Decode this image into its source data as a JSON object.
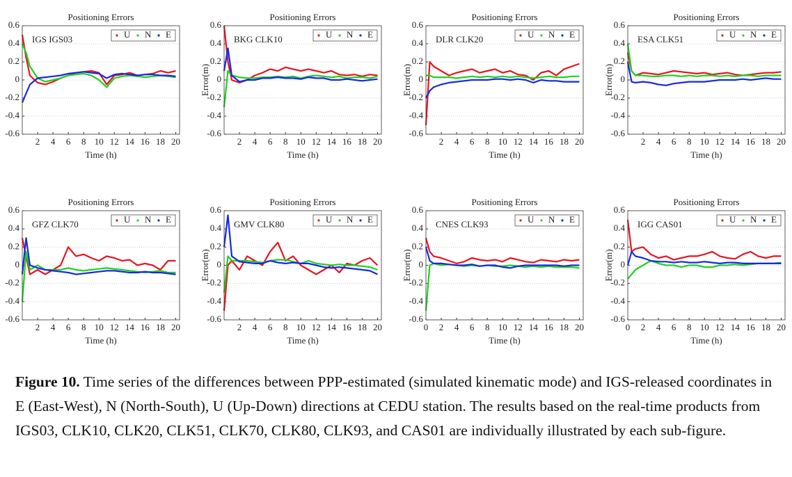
{
  "chart_data": [
    {
      "type": "line",
      "title": "Positioning Errors",
      "annotation": "IGS IGS03",
      "xlabel": "Time (h)",
      "x": [
        0,
        0.5,
        1,
        2,
        3,
        4,
        5,
        6,
        7,
        8,
        9,
        10,
        11,
        12,
        13,
        14,
        15,
        16,
        17,
        18,
        19,
        20
      ],
      "series": [
        {
          "name": "U",
          "color": "#e8141e",
          "values": [
            0.5,
            0.25,
            0.05,
            -0.03,
            -0.05,
            -0.02,
            0.02,
            0.05,
            0.08,
            0.09,
            0.1,
            0.08,
            -0.05,
            0.05,
            0.06,
            0.08,
            0.05,
            0.06,
            0.07,
            0.1,
            0.08,
            0.1
          ]
        },
        {
          "name": "N",
          "color": "#1ed21e",
          "values": [
            0.4,
            0.3,
            0.15,
            0.02,
            -0.02,
            0.0,
            0.02,
            0.05,
            0.06,
            0.07,
            0.05,
            0.0,
            -0.08,
            0.02,
            0.04,
            0.05,
            0.04,
            0.03,
            0.04,
            0.05,
            0.04,
            0.03
          ]
        },
        {
          "name": "E",
          "color": "#1428e6",
          "values": [
            -0.25,
            -0.15,
            -0.05,
            0.02,
            0.03,
            0.04,
            0.05,
            0.07,
            0.08,
            0.09,
            0.08,
            0.07,
            0.02,
            0.06,
            0.07,
            0.06,
            0.05,
            0.06,
            0.06,
            0.05,
            0.05,
            0.04
          ]
        }
      ],
      "xlim": [
        0,
        20.5
      ],
      "ylim": [
        -0.6,
        0.6
      ],
      "xticks": [
        2,
        4,
        6,
        8,
        10,
        12,
        14,
        16,
        18,
        20
      ],
      "yticks": [
        -0.6,
        -0.4,
        -0.2,
        0,
        0.2,
        0.4,
        0.6
      ],
      "grid": true,
      "legend": "top-right"
    },
    {
      "type": "line",
      "title": "Positioning Errors",
      "annotation": "BKG CLK10",
      "xlabel": "Time (h)",
      "ylabel": "Error(m)",
      "x": [
        0,
        0.5,
        1,
        2,
        3,
        4,
        5,
        6,
        7,
        8,
        9,
        10,
        11,
        12,
        13,
        14,
        15,
        16,
        17,
        18,
        19,
        20
      ],
      "series": [
        {
          "name": "U",
          "color": "#e8141e",
          "values": [
            0.6,
            0.2,
            0.0,
            -0.03,
            0.0,
            0.05,
            0.08,
            0.12,
            0.1,
            0.14,
            0.12,
            0.1,
            0.12,
            0.1,
            0.08,
            0.1,
            0.06,
            0.05,
            0.06,
            0.04,
            0.06,
            0.05
          ]
        },
        {
          "name": "N",
          "color": "#1ed21e",
          "values": [
            -0.3,
            0.1,
            0.05,
            0.03,
            0.02,
            0.02,
            0.03,
            0.03,
            0.04,
            0.03,
            0.04,
            0.02,
            0.04,
            0.05,
            0.04,
            0.03,
            0.04,
            0.02,
            0.03,
            0.03,
            0.02,
            0.04
          ]
        },
        {
          "name": "E",
          "color": "#1428e6",
          "values": [
            0.1,
            0.35,
            0.05,
            -0.02,
            0.0,
            0.0,
            0.02,
            0.02,
            0.03,
            0.02,
            0.02,
            0.01,
            0.03,
            0.02,
            0.02,
            0.0,
            0.0,
            0.01,
            0.0,
            -0.01,
            0.0,
            0.01
          ]
        }
      ],
      "xlim": [
        0,
        20.5
      ],
      "ylim": [
        -0.6,
        0.6
      ],
      "xticks": [
        2,
        4,
        6,
        8,
        10,
        12,
        14,
        16,
        18,
        20
      ],
      "yticks": [
        -0.6,
        -0.4,
        -0.2,
        0,
        0.2,
        0.4,
        0.6
      ],
      "grid": true,
      "legend": "top-right"
    },
    {
      "type": "line",
      "title": "Positioning Errors",
      "annotation": "DLR CLK20",
      "xlabel": "Time (h)",
      "ylabel": "Error(m)",
      "x": [
        0,
        0.5,
        1,
        2,
        3,
        4,
        5,
        6,
        7,
        8,
        9,
        10,
        11,
        12,
        13,
        14,
        15,
        16,
        17,
        18,
        19,
        20
      ],
      "series": [
        {
          "name": "U",
          "color": "#e8141e",
          "values": [
            -0.5,
            0.2,
            0.15,
            0.1,
            0.05,
            0.08,
            0.1,
            0.12,
            0.08,
            0.1,
            0.12,
            0.08,
            0.1,
            0.06,
            0.05,
            0.0,
            0.08,
            0.1,
            0.05,
            0.12,
            0.15,
            0.18
          ]
        },
        {
          "name": "N",
          "color": "#1ed21e",
          "values": [
            0.05,
            0.05,
            0.03,
            0.03,
            0.03,
            0.02,
            0.03,
            0.04,
            0.03,
            0.04,
            0.03,
            0.04,
            0.03,
            0.04,
            0.03,
            0.02,
            0.03,
            0.04,
            0.03,
            0.03,
            0.04,
            0.04
          ]
        },
        {
          "name": "E",
          "color": "#1428e6",
          "values": [
            -0.2,
            -0.12,
            -0.08,
            -0.05,
            -0.03,
            -0.02,
            -0.01,
            0.0,
            0.0,
            0.0,
            0.01,
            0.01,
            0.0,
            0.01,
            0.0,
            -0.03,
            0.0,
            -0.01,
            -0.01,
            -0.02,
            -0.02,
            -0.02
          ]
        }
      ],
      "xlim": [
        0,
        20.5
      ],
      "ylim": [
        -0.6,
        0.6
      ],
      "xticks": [
        2,
        4,
        6,
        8,
        10,
        12,
        14,
        16,
        18,
        20
      ],
      "yticks": [
        -0.6,
        -0.4,
        -0.2,
        0,
        0.2,
        0.4,
        0.6
      ],
      "grid": true,
      "legend": "top-right"
    },
    {
      "type": "line",
      "title": "Positioning Errors",
      "annotation": "ESA CLK51",
      "xlabel": "Time (h)",
      "ylabel": "Error(m)",
      "x": [
        0,
        0.5,
        1,
        2,
        3,
        4,
        5,
        6,
        7,
        8,
        9,
        10,
        11,
        12,
        13,
        14,
        15,
        16,
        17,
        18,
        19,
        20
      ],
      "series": [
        {
          "name": "U",
          "color": "#e8141e",
          "values": [
            0.3,
            0.1,
            0.05,
            0.08,
            0.07,
            0.06,
            0.08,
            0.1,
            0.09,
            0.08,
            0.07,
            0.08,
            0.06,
            0.07,
            0.08,
            0.06,
            0.05,
            0.06,
            0.07,
            0.08,
            0.08,
            0.09
          ]
        },
        {
          "name": "N",
          "color": "#1ed21e",
          "values": [
            0.4,
            0.1,
            0.05,
            0.05,
            0.04,
            0.04,
            0.05,
            0.05,
            0.04,
            0.05,
            0.04,
            0.05,
            0.05,
            0.04,
            0.05,
            0.04,
            0.05,
            0.05,
            0.04,
            0.05,
            0.05,
            0.05
          ]
        },
        {
          "name": "E",
          "color": "#1428e6",
          "values": [
            0.2,
            -0.02,
            -0.03,
            -0.02,
            -0.03,
            -0.05,
            -0.06,
            -0.04,
            -0.03,
            -0.02,
            -0.02,
            -0.02,
            -0.01,
            0.0,
            0.0,
            0.0,
            0.01,
            0.0,
            0.01,
            0.02,
            0.01,
            0.01
          ]
        }
      ],
      "xlim": [
        0,
        20.5
      ],
      "ylim": [
        -0.6,
        0.6
      ],
      "xticks": [
        2,
        4,
        6,
        8,
        10,
        12,
        14,
        16,
        18,
        20
      ],
      "yticks": [
        -0.6,
        -0.4,
        -0.2,
        0,
        0.2,
        0.4,
        0.6
      ],
      "grid": true,
      "legend": "top-right"
    },
    {
      "type": "line",
      "title": "Positioning Errors",
      "annotation": "GFZ CLK70",
      "xlabel": "Time (h)",
      "x": [
        0,
        0.5,
        1,
        2,
        3,
        4,
        5,
        6,
        7,
        8,
        9,
        10,
        11,
        12,
        13,
        14,
        15,
        16,
        17,
        18,
        19,
        20
      ],
      "series": [
        {
          "name": "U",
          "color": "#e8141e",
          "values": [
            0.3,
            0.1,
            -0.1,
            -0.05,
            -0.1,
            -0.05,
            0.0,
            0.2,
            0.1,
            0.12,
            0.08,
            0.05,
            0.1,
            0.08,
            0.05,
            0.06,
            0.0,
            0.02,
            0.0,
            -0.05,
            0.05,
            0.05
          ]
        },
        {
          "name": "N",
          "color": "#1ed21e",
          "values": [
            -0.4,
            0.15,
            -0.05,
            0.0,
            -0.05,
            -0.05,
            -0.05,
            -0.03,
            -0.05,
            -0.06,
            -0.05,
            -0.04,
            -0.03,
            -0.04,
            -0.05,
            -0.06,
            -0.07,
            -0.08,
            -0.07,
            -0.06,
            -0.08,
            -0.08
          ]
        },
        {
          "name": "E",
          "color": "#1428e6",
          "values": [
            -0.1,
            0.3,
            0.0,
            -0.03,
            -0.05,
            -0.06,
            -0.07,
            -0.08,
            -0.1,
            -0.09,
            -0.08,
            -0.07,
            -0.06,
            -0.06,
            -0.07,
            -0.08,
            -0.08,
            -0.07,
            -0.08,
            -0.08,
            -0.09,
            -0.1
          ]
        }
      ],
      "xlim": [
        0,
        20.5
      ],
      "ylim": [
        -0.6,
        0.6
      ],
      "xticks": [
        2,
        4,
        6,
        8,
        10,
        12,
        14,
        16,
        18,
        20
      ],
      "yticks": [
        -0.6,
        -0.4,
        -0.2,
        0,
        0.2,
        0.4,
        0.6
      ],
      "grid": true,
      "legend": "top-right"
    },
    {
      "type": "line",
      "title": "Positioning Errors",
      "annotation": "GMV CLK80",
      "xlabel": "Time (h)",
      "ylabel": "Error(m)",
      "x": [
        0,
        0.5,
        1,
        2,
        3,
        4,
        5,
        6,
        7,
        8,
        9,
        10,
        11,
        12,
        13,
        14,
        15,
        16,
        17,
        18,
        19,
        20
      ],
      "series": [
        {
          "name": "U",
          "color": "#e8141e",
          "values": [
            -0.5,
            0.0,
            0.05,
            -0.05,
            0.1,
            0.05,
            0.0,
            0.15,
            0.25,
            0.05,
            0.1,
            0.0,
            -0.05,
            -0.1,
            -0.05,
            0.0,
            -0.08,
            0.02,
            0.0,
            0.05,
            0.08,
            0.0
          ]
        },
        {
          "name": "N",
          "color": "#1ed21e",
          "values": [
            -0.3,
            0.1,
            0.05,
            0.05,
            0.05,
            0.04,
            0.03,
            0.05,
            0.06,
            0.06,
            0.04,
            0.02,
            0.05,
            0.02,
            0.01,
            0.0,
            0.01,
            0.0,
            0.0,
            -0.01,
            -0.02,
            -0.05
          ]
        },
        {
          "name": "E",
          "color": "#1428e6",
          "values": [
            0.2,
            0.55,
            0.1,
            0.04,
            0.03,
            0.02,
            0.02,
            0.05,
            0.03,
            0.02,
            0.03,
            0.02,
            0.02,
            0.0,
            -0.02,
            -0.03,
            -0.02,
            -0.03,
            -0.04,
            -0.05,
            -0.06,
            -0.1
          ]
        }
      ],
      "xlim": [
        0,
        20.5
      ],
      "ylim": [
        -0.6,
        0.6
      ],
      "xticks": [
        2,
        4,
        6,
        8,
        10,
        12,
        14,
        16,
        18,
        20
      ],
      "yticks": [
        -0.6,
        -0.4,
        -0.2,
        0,
        0.2,
        0.4,
        0.6
      ],
      "grid": true,
      "legend": "top-right"
    },
    {
      "type": "line",
      "title": "Positioning Errors",
      "annotation": "CNES CLK93",
      "xlabel": "Time (h)",
      "ylabel": "Error(m)",
      "x": [
        0,
        0.5,
        1,
        2,
        3,
        4,
        5,
        6,
        7,
        8,
        9,
        10,
        11,
        12,
        13,
        14,
        15,
        16,
        17,
        18,
        19,
        20
      ],
      "series": [
        {
          "name": "U",
          "color": "#e8141e",
          "values": [
            0.3,
            0.15,
            0.1,
            0.08,
            0.05,
            0.02,
            0.04,
            0.08,
            0.06,
            0.05,
            0.06,
            0.04,
            0.08,
            0.06,
            0.04,
            0.03,
            0.06,
            0.05,
            0.04,
            0.06,
            0.05,
            0.06
          ]
        },
        {
          "name": "N",
          "color": "#1ed21e",
          "values": [
            -0.5,
            0.0,
            0.02,
            0.0,
            0.01,
            0.0,
            -0.01,
            0.0,
            -0.01,
            0.0,
            -0.01,
            -0.01,
            0.0,
            -0.01,
            -0.02,
            -0.01,
            -0.02,
            -0.01,
            -0.02,
            -0.02,
            -0.02,
            -0.03
          ]
        },
        {
          "name": "E",
          "color": "#1428e6",
          "values": [
            0.2,
            0.05,
            0.02,
            0.02,
            0.01,
            0.0,
            0.0,
            0.01,
            -0.01,
            0.0,
            0.0,
            -0.02,
            -0.03,
            -0.01,
            0.0,
            0.0,
            0.0,
            0.0,
            0.0,
            -0.01,
            0.0,
            0.0
          ]
        }
      ],
      "xlim": [
        0,
        20.5
      ],
      "ylim": [
        -0.6,
        0.6
      ],
      "xticks": [
        0,
        2,
        4,
        6,
        8,
        10,
        12,
        14,
        16,
        18,
        20
      ],
      "yticks": [
        -0.6,
        -0.4,
        -0.2,
        0,
        0.2,
        0.4,
        0.6
      ],
      "grid": true,
      "legend": "top-right"
    },
    {
      "type": "line",
      "title": "Positioning Errors",
      "annotation": "IGG CAS01",
      "xlabel": "Time (h)",
      "ylabel": "Error(m)",
      "x": [
        0,
        0.5,
        1,
        2,
        3,
        4,
        5,
        6,
        7,
        8,
        9,
        10,
        11,
        12,
        13,
        14,
        15,
        16,
        17,
        18,
        19,
        20
      ],
      "series": [
        {
          "name": "U",
          "color": "#e8141e",
          "values": [
            0.5,
            0.15,
            0.18,
            0.2,
            0.12,
            0.08,
            0.1,
            0.06,
            0.08,
            0.1,
            0.1,
            0.12,
            0.15,
            0.1,
            0.08,
            0.07,
            0.12,
            0.15,
            0.1,
            0.08,
            0.1,
            0.1
          ]
        },
        {
          "name": "N",
          "color": "#1ed21e",
          "values": [
            -0.15,
            -0.1,
            -0.05,
            0.0,
            0.05,
            0.02,
            0.0,
            0.0,
            -0.02,
            0.0,
            0.0,
            -0.02,
            -0.02,
            0.0,
            0.0,
            0.01,
            0.0,
            0.01,
            0.02,
            0.02,
            0.02,
            0.03
          ]
        },
        {
          "name": "E",
          "color": "#1428e6",
          "values": [
            0.0,
            0.15,
            0.1,
            0.08,
            0.05,
            0.04,
            0.04,
            0.03,
            0.04,
            0.03,
            0.03,
            0.04,
            0.03,
            0.02,
            0.03,
            0.03,
            0.02,
            0.02,
            0.02,
            0.02,
            0.02,
            0.02
          ]
        }
      ],
      "xlim": [
        0,
        20.5
      ],
      "ylim": [
        -0.6,
        0.6
      ],
      "xticks": [
        0,
        2,
        4,
        6,
        8,
        10,
        12,
        14,
        16,
        18,
        20
      ],
      "yticks": [
        -0.6,
        -0.4,
        -0.2,
        0,
        0.2,
        0.4,
        0.6
      ],
      "grid": true,
      "legend": "top-right"
    }
  ],
  "caption": {
    "label": "Figure 10.",
    "text": "Time series of the differences between PPP-estimated (simulated kinematic mode) and IGS-released coordinates in E (East-West), N (North-South), U (Up-Down) directions at CEDU station. The results based on the real-time products from IGS03, CLK10, CLK20, CLK51, CLK70, CLK80, CLK93, and CAS01 are individually illustrated by each sub-figure."
  }
}
